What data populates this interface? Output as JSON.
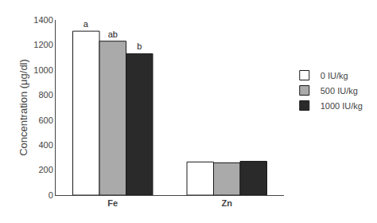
{
  "chart_data": {
    "type": "bar",
    "categories": [
      "Fe",
      "Zn"
    ],
    "series": [
      {
        "name": "0 IU/kg",
        "color": "#ffffff",
        "values": [
          1310,
          265
        ]
      },
      {
        "name": "500 IU/kg",
        "color": "#aaaaaa",
        "values": [
          1230,
          258
        ]
      },
      {
        "name": "1000 IU/kg",
        "color": "#2a2a2a",
        "values": [
          1130,
          270
        ]
      }
    ],
    "annotations": [
      {
        "category": "Fe",
        "series": "0 IU/kg",
        "text": "a"
      },
      {
        "category": "Fe",
        "series": "500 IU/kg",
        "text": "ab"
      },
      {
        "category": "Fe",
        "series": "1000 IU/kg",
        "text": "b"
      }
    ],
    "ylabel": "Concentration (μg/dl)",
    "ylim": [
      0,
      1400
    ],
    "yticks": [
      0,
      200,
      400,
      600,
      800,
      1000,
      1200,
      1400
    ],
    "grid": false,
    "legend": "right"
  }
}
